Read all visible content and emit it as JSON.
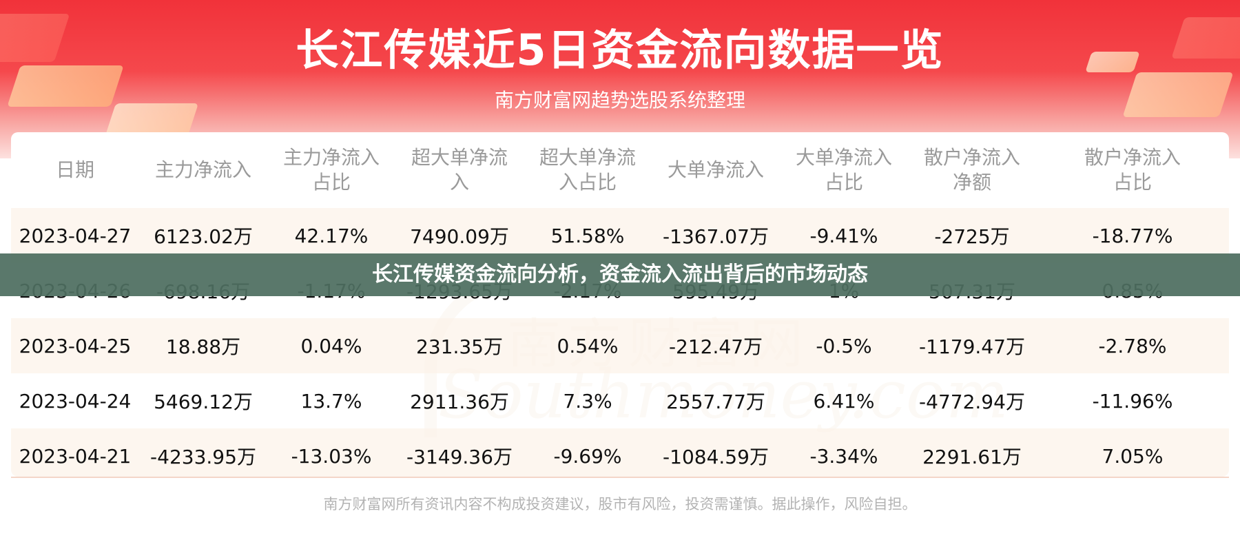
{
  "header": {
    "title": "长江传媒近5日资金流向数据一览",
    "subtitle": "南方财富网趋势选股系统整理"
  },
  "watermark": {
    "cn": "南方财富网",
    "en": "Southmoney.com"
  },
  "banner": {
    "text": "长江传媒资金流向分析，资金流入流出背后的市场动态"
  },
  "footer": {
    "disclaimer": "南方财富网所有资讯内容不构成投资建议，股市有风险，投资需谨慎。据此操作，风险自担。"
  },
  "colors": {
    "header_red": "#f1323a",
    "banner_green": "#4e6e60",
    "row_stripe": "#fdf4ec"
  },
  "chart_data": {
    "type": "table",
    "columns": [
      "日期",
      "主力净流入",
      "主力净流入占比",
      "超大单净流入",
      "超大单净流入占比",
      "大单净流入",
      "大单净流入占比",
      "散户净流入净额",
      "散户净流入占比"
    ],
    "header_lines": [
      [
        "日期"
      ],
      [
        "主力净流入"
      ],
      [
        "主力净流入",
        "占比"
      ],
      [
        "超大单净流",
        "入"
      ],
      [
        "超大单净流",
        "入占比"
      ],
      [
        "大单净流入"
      ],
      [
        "大单净流入",
        "占比"
      ],
      [
        "散户净流入",
        "净额"
      ],
      [
        "散户净流入",
        "占比"
      ]
    ],
    "rows": [
      [
        "2023-04-27",
        "6123.02万",
        "42.17%",
        "7490.09万",
        "51.58%",
        "-1367.07万",
        "-9.41%",
        "-2725万",
        "-18.77%"
      ],
      [
        "2023-04-26",
        "-698.16万",
        "-1.17%",
        "-1293.65万",
        "-2.17%",
        "595.49万",
        "1%",
        "507.31万",
        "0.85%"
      ],
      [
        "2023-04-25",
        "18.88万",
        "0.04%",
        "231.35万",
        "0.54%",
        "-212.47万",
        "-0.5%",
        "-1179.47万",
        "-2.78%"
      ],
      [
        "2023-04-24",
        "5469.12万",
        "13.7%",
        "2911.36万",
        "7.3%",
        "2557.77万",
        "6.41%",
        "-4772.94万",
        "-11.96%"
      ],
      [
        "2023-04-21",
        "-4233.95万",
        "-13.03%",
        "-3149.36万",
        "-9.69%",
        "-1084.59万",
        "-3.34%",
        "2291.61万",
        "7.05%"
      ]
    ]
  }
}
